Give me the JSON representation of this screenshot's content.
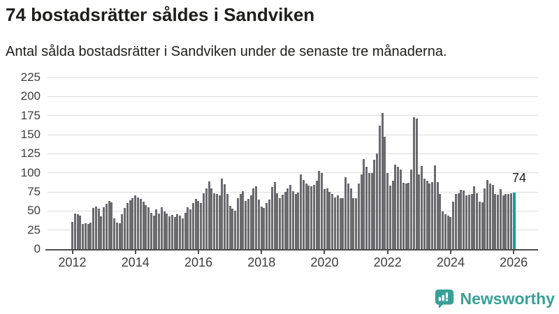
{
  "header": {
    "title": "74 bostadsrätter såldes i Sandviken",
    "subtitle": "Antal sålda bostadsrätter i Sandviken under de senaste tre månaderna."
  },
  "chart_data": {
    "type": "bar",
    "title": "74 bostadsrätter såldes i Sandviken",
    "subtitle": "Antal sålda bostadsrätter i Sandviken under de senaste tre månaderna.",
    "grid": true,
    "ylim": [
      0,
      235
    ],
    "y_ticks": [
      0,
      25,
      50,
      75,
      100,
      125,
      150,
      175,
      200,
      225
    ],
    "x_tick_labels": [
      "2012",
      "2014",
      "2016",
      "2018",
      "2020",
      "2022",
      "2024",
      "2026"
    ],
    "x_start_year": 2012,
    "bars_per_year": 12,
    "values": [
      36,
      47,
      46,
      44,
      33,
      34,
      33,
      35,
      54,
      56,
      53,
      43,
      55,
      59,
      63,
      61,
      40,
      35,
      34,
      46,
      54,
      60,
      64,
      67,
      70,
      68,
      66,
      62,
      58,
      55,
      48,
      44,
      52,
      47,
      55,
      49,
      47,
      43,
      45,
      42,
      46,
      44,
      40,
      48,
      55,
      52,
      60,
      66,
      63,
      60,
      73,
      80,
      89,
      80,
      73,
      72,
      70,
      92,
      85,
      72,
      57,
      53,
      50,
      67,
      72,
      76,
      63,
      66,
      70,
      80,
      82,
      65,
      56,
      54,
      60,
      65,
      81,
      88,
      73,
      67,
      71,
      75,
      80,
      84,
      76,
      72,
      74,
      98,
      91,
      86,
      83,
      82,
      84,
      90,
      102,
      100,
      79,
      80,
      75,
      72,
      68,
      70,
      67,
      67,
      94,
      86,
      80,
      67,
      67,
      86,
      98,
      118,
      108,
      100,
      100,
      117,
      125,
      162,
      178,
      147,
      100,
      83,
      90,
      111,
      108,
      104,
      87,
      86,
      87,
      104,
      173,
      171,
      98,
      109,
      92,
      90,
      86,
      88,
      110,
      88,
      72,
      49,
      46,
      44,
      42,
      62,
      72,
      73,
      78,
      77,
      70,
      71,
      72,
      82,
      73,
      62,
      61,
      80,
      91,
      86,
      84,
      72,
      71,
      79,
      70,
      72,
      72,
      73,
      74
    ],
    "highlight_index": 168,
    "highlight_value_label": "74",
    "bar_color": "#6a6a6f",
    "highlight_color": "#189c9c",
    "gridline_color": "#dcdcdc",
    "axis_color": "#4d4d4d"
  },
  "footer": {
    "brand": "Newsworthy",
    "brand_color": "#38a096",
    "logo_icon": "newsworthy-speech-bubble-chart-icon"
  }
}
